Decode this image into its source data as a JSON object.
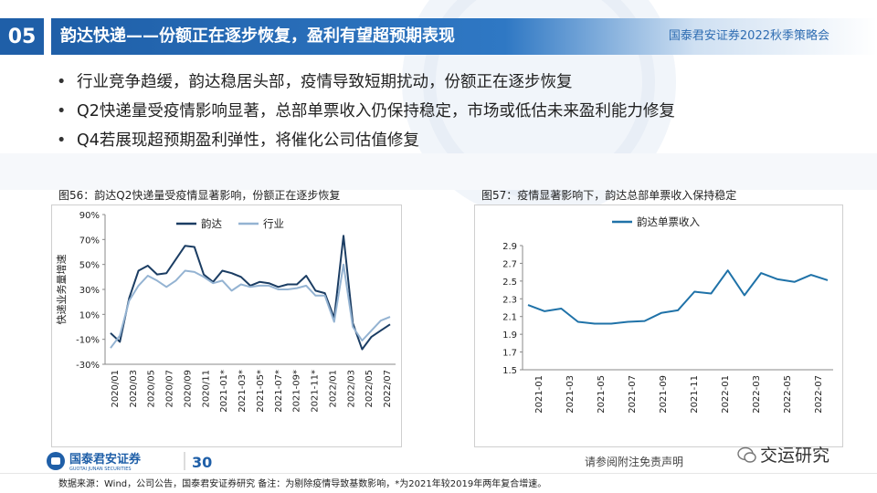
{
  "header": {
    "section_number": "05",
    "title": "韵达快递——份额正在逐步恢复，盈利有望超预期表现",
    "brand": "国泰君安证券2022秋季策略会"
  },
  "bullets": [
    "行业竞争趋缓，韵达稳居头部，疫情导致短期扰动，份额正在逐步恢复",
    "Q2快递量受疫情影响显著，总部单票收入仍保持稳定，市场或低估未来盈利能力修复",
    "Q4若展现超预期盈利弹性，将催化公司估值修复"
  ],
  "colors": {
    "primary": "#1f5fa8",
    "yunda": "#1b3d63",
    "industry": "#94b3d2",
    "unit": "#1f72a8"
  },
  "chart_data": [
    {
      "type": "line",
      "title": "图56：韵达Q2快递量受疫情显著影响，份额正在逐步恢复",
      "ylabel": "快递业务量增速",
      "ylim": [
        -30,
        90
      ],
      "yticks": [
        "90%",
        "70%",
        "50%",
        "30%",
        "10%",
        "-10%",
        "-30%"
      ],
      "ytick_values": [
        90,
        70,
        50,
        30,
        10,
        -10,
        -30
      ],
      "x_tick_labels": [
        "2020/01",
        "2020/03",
        "2020/05",
        "2020/07",
        "2020/09",
        "2020/11",
        "2021-01*",
        "2021-03*",
        "2021-05*",
        "2021-07*",
        "2021-09*",
        "2021-11*",
        "2022/01",
        "2022/03",
        "2022/05",
        "2022/07"
      ],
      "legend_position": "top",
      "series": [
        {
          "name": "韵达",
          "values": [
            -5,
            -12,
            23,
            45,
            49,
            42,
            43,
            54,
            65,
            64,
            42,
            36,
            45,
            43,
            40,
            33,
            36,
            35,
            32,
            34,
            34,
            41,
            29,
            27,
            7,
            73,
            3,
            -18,
            -8,
            -3,
            2
          ]
        },
        {
          "name": "行业",
          "values": [
            -17,
            -7,
            21,
            33,
            41,
            37,
            32,
            37,
            45,
            44,
            40,
            35,
            37,
            29,
            34,
            32,
            33,
            33,
            30,
            30,
            31,
            33,
            25,
            25,
            4,
            50,
            0,
            -11,
            -3,
            5,
            8
          ]
        }
      ]
    },
    {
      "type": "line",
      "title": "图57：疫情显著影响下，韵达总部单票收入保持稳定",
      "ylim": [
        1.5,
        2.9
      ],
      "yticks": [
        "2.9",
        "2.7",
        "2.5",
        "2.3",
        "2.1",
        "1.9",
        "1.7",
        "1.5"
      ],
      "ytick_values": [
        2.9,
        2.7,
        2.5,
        2.3,
        2.1,
        1.9,
        1.7,
        1.5
      ],
      "x_tick_labels": [
        "2021-01",
        "2021-03",
        "2021-05",
        "2021-07",
        "2021-09",
        "2021-11",
        "2022-01",
        "2022-03",
        "2022-05",
        "2022-07"
      ],
      "legend_position": "top",
      "series": [
        {
          "name": "韵达单票收入",
          "values": [
            2.23,
            2.16,
            2.19,
            2.04,
            2.02,
            2.02,
            2.04,
            2.05,
            2.14,
            2.17,
            2.38,
            2.36,
            2.62,
            2.34,
            2.59,
            2.52,
            2.49,
            2.57,
            2.51
          ]
        }
      ]
    }
  ],
  "footer": {
    "logo_cn": "国泰君安证券",
    "logo_en": "GUOTAI JUNAN SECURITIES",
    "logo_badge": "30",
    "note": "请参阅附注免责声明",
    "watermark": "交运研究",
    "source": "数据来源：Wind，公司公告，国泰君安证券研究 备注：为剔除疫情导致基数影响，*为2021年较2019年两年复合增速。"
  }
}
